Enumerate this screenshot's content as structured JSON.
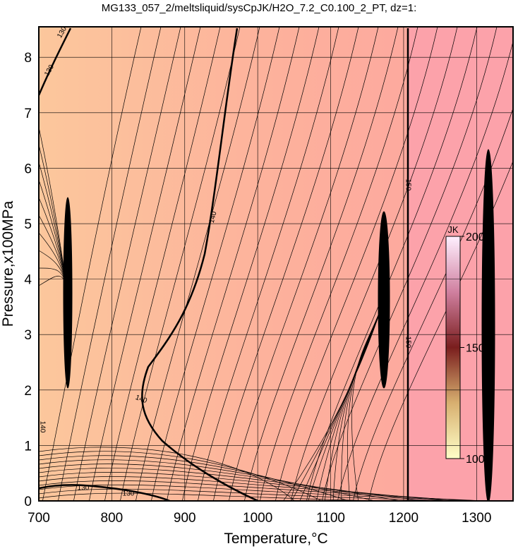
{
  "chart_data": {
    "type": "contour",
    "title": "MG133_057_2/meltsliquid/sysCpJK/H2O_7.2_C0.100_2_PT, dz=1:",
    "xlabel": "Temperature,°C",
    "ylabel": "Pressure,x100MPa",
    "xlim": [
      700,
      1350
    ],
    "ylim": [
      0,
      8.55
    ],
    "xticks": [
      700,
      800,
      900,
      1000,
      1100,
      1200,
      1300
    ],
    "yticks": [
      0,
      1,
      2,
      3,
      4,
      5,
      6,
      7,
      8
    ],
    "grid": true,
    "contour_labels": [
      130,
      130,
      130,
      130,
      140,
      140,
      140,
      150,
      150
    ],
    "colorbar": {
      "label": "JK",
      "lim": [
        100,
        200
      ],
      "ticks": [
        100,
        150,
        200
      ]
    }
  }
}
